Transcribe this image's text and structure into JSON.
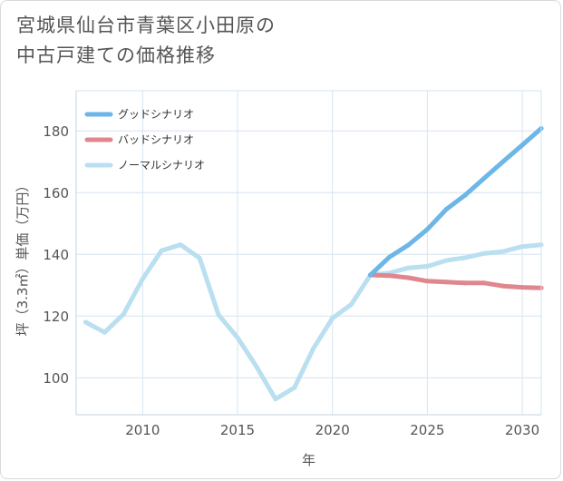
{
  "chart_data": {
    "type": "line",
    "title": "宮城県仙台市青葉区小田原の中古戸建ての価格推移",
    "title_lines": [
      "宮城県仙台市青葉区小田原の",
      "中古戸建ての価格推移"
    ],
    "xlabel": "年",
    "ylabel": "坪（3.3㎡）単価（万円）",
    "xlim": [
      2006.5,
      2031
    ],
    "ylim": [
      88,
      193
    ],
    "x_ticks": [
      2010,
      2015,
      2020,
      2025,
      2030
    ],
    "y_ticks": [
      100,
      120,
      140,
      160,
      180
    ],
    "legend_position": "top-left",
    "series": [
      {
        "name": "グッドシナリオ",
        "color": "#6cb6e8",
        "x": [
          2022,
          2023,
          2024,
          2025,
          2026,
          2027,
          2028,
          2029,
          2030,
          2031
        ],
        "values": [
          133.3,
          139.1,
          143.0,
          148.1,
          154.6,
          159.2,
          164.7,
          170.1,
          175.4,
          180.8
        ]
      },
      {
        "name": "バッドシナリオ",
        "color": "#e0868e",
        "x": [
          2022,
          2023,
          2024,
          2025,
          2026,
          2027,
          2028,
          2029,
          2030,
          2031
        ],
        "values": [
          133.3,
          133.1,
          132.4,
          131.3,
          131.0,
          130.7,
          130.7,
          129.7,
          129.3,
          129.1
        ]
      },
      {
        "name": "ノーマルシナリオ",
        "color": "#b9dff0",
        "x": [
          2007,
          2008,
          2009,
          2010,
          2011,
          2012,
          2013,
          2014,
          2015,
          2016,
          2017,
          2018,
          2019,
          2020,
          2021,
          2022,
          2023,
          2024,
          2025,
          2026,
          2027,
          2028,
          2029,
          2030,
          2031
        ],
        "values": [
          118.0,
          114.7,
          120.6,
          132.0,
          141.2,
          143.1,
          138.8,
          120.4,
          113.0,
          103.6,
          93.1,
          96.8,
          109.5,
          119.3,
          123.8,
          133.3,
          133.9,
          135.6,
          136.1,
          138.0,
          138.9,
          140.3,
          140.9,
          142.5,
          143.1
        ]
      }
    ]
  }
}
